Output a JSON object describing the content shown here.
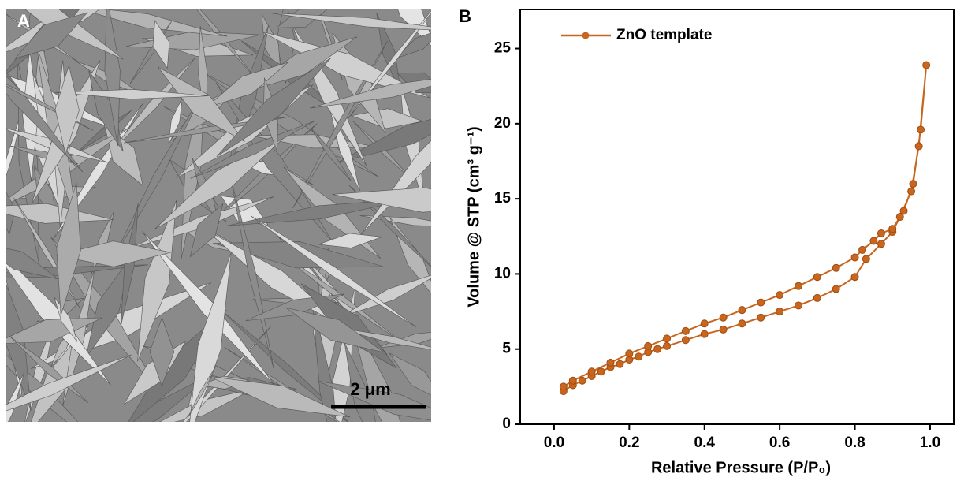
{
  "panel_a": {
    "label": "A",
    "scale_bar": "2 μm"
  },
  "chart_data": {
    "type": "line",
    "panel_label": "B",
    "xlabel": "Relative Pressure (P/P₀)",
    "ylabel": "Volume @ STP (cm³ g⁻¹)",
    "x": [
      0.025,
      0.05,
      0.075,
      0.1,
      0.125,
      0.15,
      0.175,
      0.2,
      0.225,
      0.25,
      0.275,
      0.3,
      0.35,
      0.4,
      0.45,
      0.5,
      0.55,
      0.6,
      0.65,
      0.7,
      0.75,
      0.8,
      0.83,
      0.87,
      0.9,
      0.92,
      0.95,
      0.97,
      0.99,
      0.975,
      0.955,
      0.93,
      0.9,
      0.87,
      0.85,
      0.82,
      0.8,
      0.75,
      0.7,
      0.65,
      0.6,
      0.55,
      0.5,
      0.45,
      0.4,
      0.35,
      0.3,
      0.25,
      0.2,
      0.15,
      0.1,
      0.05,
      0.025
    ],
    "series": [
      {
        "name": "ZnO template",
        "color": "#c8651e",
        "values": [
          2.2,
          2.6,
          2.9,
          3.2,
          3.5,
          3.8,
          4.0,
          4.3,
          4.5,
          4.8,
          5.0,
          5.2,
          5.6,
          6.0,
          6.3,
          6.7,
          7.1,
          7.5,
          7.9,
          8.4,
          9.0,
          9.8,
          11.0,
          12.0,
          12.8,
          13.8,
          15.5,
          18.5,
          23.9,
          19.6,
          16.0,
          14.2,
          13.0,
          12.7,
          12.2,
          11.6,
          11.1,
          10.4,
          9.8,
          9.2,
          8.6,
          8.1,
          7.6,
          7.1,
          6.7,
          6.2,
          5.7,
          5.2,
          4.7,
          4.1,
          3.5,
          2.9,
          2.5
        ]
      }
    ],
    "xlim": [
      -0.09,
      1.063
    ],
    "ylim": [
      0,
      27.6
    ],
    "xticks": [
      {
        "value": 0,
        "label": "0.0"
      },
      0.2,
      0.4,
      0.6,
      0.8,
      {
        "value": 1,
        "label": "1.0"
      }
    ],
    "yticks": [
      0,
      5,
      10,
      15,
      20,
      25
    ]
  }
}
